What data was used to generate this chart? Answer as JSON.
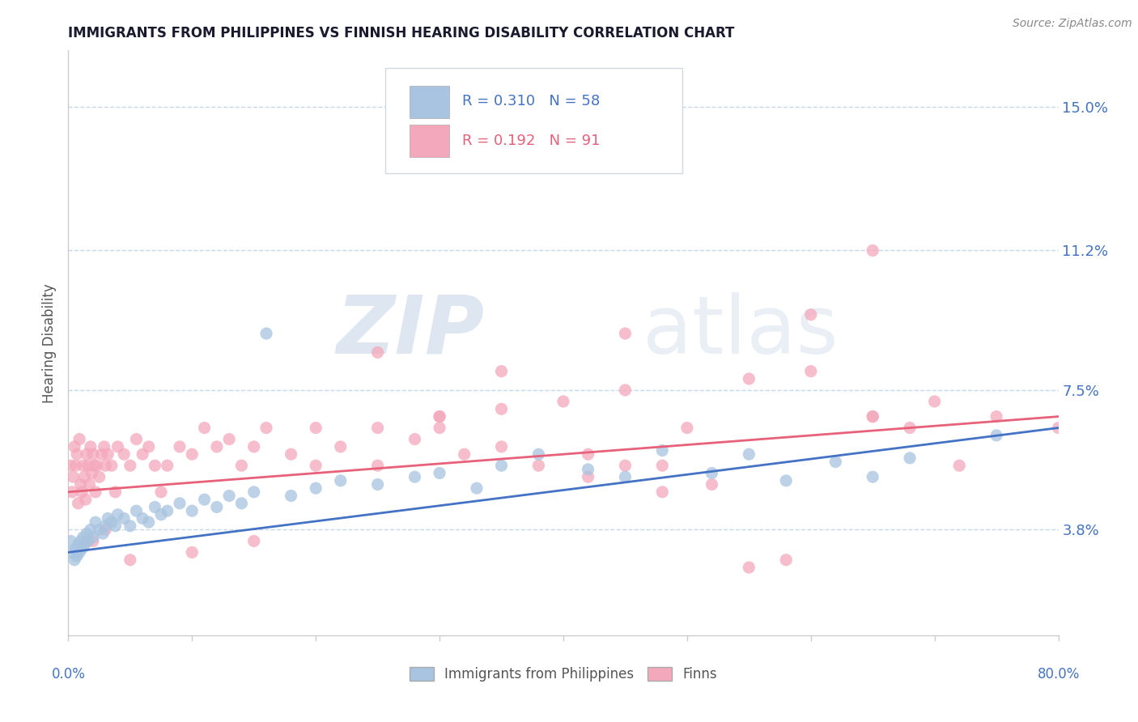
{
  "title": "IMMIGRANTS FROM PHILIPPINES VS FINNISH HEARING DISABILITY CORRELATION CHART",
  "source_text": "Source: ZipAtlas.com",
  "ylabel": "Hearing Disability",
  "xlim": [
    0,
    80
  ],
  "ylim": [
    1.0,
    16.5
  ],
  "yticks": [
    3.8,
    7.5,
    11.2,
    15.0
  ],
  "xticks": [
    0,
    10,
    20,
    30,
    40,
    50,
    60,
    70,
    80
  ],
  "blue_color": "#a8c4e0",
  "pink_color": "#f4a8bb",
  "blue_line_color": "#4472c4",
  "pink_line_color": "#e8617a",
  "legend_r_blue": "R = 0.310",
  "legend_n_blue": "N = 58",
  "legend_r_pink": "R = 0.192",
  "legend_n_pink": "N = 91",
  "legend_label_blue": "Immigrants from Philippines",
  "legend_label_pink": "Finns",
  "blue_scatter_x": [
    0.2,
    0.3,
    0.5,
    0.6,
    0.7,
    0.8,
    0.9,
    1.0,
    1.1,
    1.2,
    1.3,
    1.5,
    1.6,
    1.8,
    2.0,
    2.2,
    2.5,
    2.8,
    3.0,
    3.2,
    3.5,
    3.8,
    4.0,
    4.5,
    5.0,
    5.5,
    6.0,
    6.5,
    7.0,
    7.5,
    8.0,
    9.0,
    10.0,
    11.0,
    12.0,
    13.0,
    14.0,
    15.0,
    16.0,
    18.0,
    20.0,
    22.0,
    25.0,
    28.0,
    30.0,
    33.0,
    35.0,
    38.0,
    42.0,
    45.0,
    48.0,
    52.0,
    55.0,
    58.0,
    62.0,
    65.0,
    68.0,
    75.0
  ],
  "blue_scatter_y": [
    3.5,
    3.2,
    3.0,
    3.3,
    3.1,
    3.4,
    3.2,
    3.5,
    3.3,
    3.6,
    3.4,
    3.7,
    3.5,
    3.8,
    3.6,
    4.0,
    3.8,
    3.7,
    3.9,
    4.1,
    4.0,
    3.9,
    4.2,
    4.1,
    3.9,
    4.3,
    4.1,
    4.0,
    4.4,
    4.2,
    4.3,
    4.5,
    4.3,
    4.6,
    4.4,
    4.7,
    4.5,
    4.8,
    9.0,
    4.7,
    4.9,
    5.1,
    5.0,
    5.2,
    5.3,
    4.9,
    5.5,
    5.8,
    5.4,
    5.2,
    5.9,
    5.3,
    5.8,
    5.1,
    5.6,
    5.2,
    5.7,
    6.3
  ],
  "pink_scatter_x": [
    0.2,
    0.3,
    0.4,
    0.5,
    0.6,
    0.7,
    0.8,
    0.9,
    1.0,
    1.1,
    1.2,
    1.3,
    1.4,
    1.5,
    1.6,
    1.7,
    1.8,
    1.9,
    2.0,
    2.1,
    2.2,
    2.3,
    2.5,
    2.7,
    2.9,
    3.0,
    3.2,
    3.5,
    3.8,
    4.0,
    4.5,
    5.0,
    5.5,
    6.0,
    6.5,
    7.0,
    7.5,
    8.0,
    9.0,
    10.0,
    11.0,
    12.0,
    13.0,
    14.0,
    15.0,
    16.0,
    18.0,
    20.0,
    22.0,
    25.0,
    28.0,
    30.0,
    32.0,
    35.0,
    38.0,
    42.0,
    45.0,
    48.0,
    52.0,
    55.0,
    58.0,
    65.0,
    70.0,
    72.0,
    75.0,
    80.0,
    25.0,
    30.0,
    35.0,
    40.0,
    45.0,
    50.0,
    55.0,
    60.0,
    65.0,
    65.0,
    68.0,
    60.0,
    48.0,
    45.0,
    42.0,
    35.0,
    30.0,
    25.0,
    20.0,
    15.0,
    10.0,
    5.0,
    3.0,
    2.0,
    1.5
  ],
  "pink_scatter_y": [
    5.5,
    4.8,
    5.2,
    6.0,
    5.5,
    5.8,
    4.5,
    6.2,
    5.0,
    4.8,
    5.5,
    5.2,
    4.6,
    5.8,
    5.5,
    5.0,
    6.0,
    5.3,
    5.8,
    5.5,
    4.8,
    5.5,
    5.2,
    5.8,
    6.0,
    5.5,
    5.8,
    5.5,
    4.8,
    6.0,
    5.8,
    5.5,
    6.2,
    5.8,
    6.0,
    5.5,
    4.8,
    5.5,
    6.0,
    5.8,
    6.5,
    6.0,
    6.2,
    5.5,
    6.0,
    6.5,
    5.8,
    6.5,
    6.0,
    5.5,
    6.2,
    6.5,
    5.8,
    6.0,
    5.5,
    5.2,
    5.5,
    4.8,
    5.0,
    2.8,
    3.0,
    6.8,
    7.2,
    5.5,
    6.8,
    6.5,
    8.5,
    6.8,
    8.0,
    7.2,
    9.0,
    6.5,
    7.8,
    8.0,
    6.8,
    11.2,
    6.5,
    9.5,
    5.5,
    7.5,
    5.8,
    7.0,
    6.8,
    6.5,
    5.5,
    3.5,
    3.2,
    3.0,
    3.8,
    3.5,
    3.5
  ],
  "blue_trend_y_start": 3.2,
  "blue_trend_y_end": 6.5,
  "pink_trend_y_start": 4.8,
  "pink_trend_y_end": 6.8,
  "watermark_zip": "ZIP",
  "watermark_atlas": "atlas",
  "background_color": "#ffffff",
  "grid_color": "#c8d8e8",
  "title_color": "#1a1a2e",
  "tick_color": "#4472c4",
  "source_color": "#888888",
  "ylabel_color": "#555555"
}
